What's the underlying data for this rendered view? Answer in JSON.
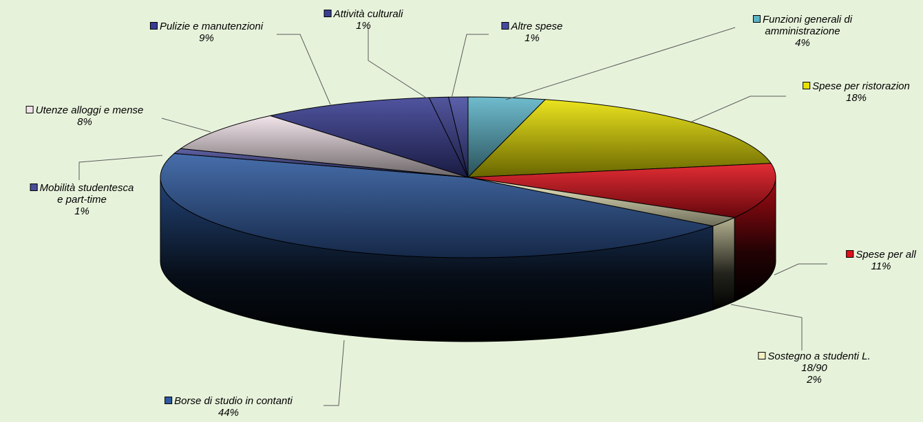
{
  "chart_data": {
    "type": "pie",
    "title": "",
    "three_d": true,
    "slices": [
      {
        "label": "Funzioni generali di amministrazione",
        "label_lines": [
          "Funzioni generali di",
          "amministrazione"
        ],
        "value": 4,
        "display": "4%",
        "color": "#5bb3c7"
      },
      {
        "label": "Spese per ristorazione",
        "label_lines": [
          "Spese per ristorazion"
        ],
        "value": 18,
        "display": "18%",
        "color": "#e8e000"
      },
      {
        "label": "Spese per alloggi",
        "label_lines": [
          "Spese per all"
        ],
        "value": 11,
        "display": "11%",
        "color": "#e0101a"
      },
      {
        "label": "Sostegno a studenti L. 18/90",
        "label_lines": [
          "Sostegno a studenti L.",
          "18/90"
        ],
        "value": 2,
        "display": "2%",
        "color": "#f3efc3"
      },
      {
        "label": "Borse di studio in contanti",
        "label_lines": [
          "Borse di studio in contanti"
        ],
        "value": 44,
        "display": "44%",
        "color": "#2e5aa0"
      },
      {
        "label": "Mobilità studentesca e part-time",
        "label_lines": [
          "Mobilità studentesca",
          "e part-time"
        ],
        "value": 1,
        "display": "1%",
        "color": "#4a4e99"
      },
      {
        "label": "Utenze alloggi e mense",
        "label_lines": [
          "Utenze alloggi e mense"
        ],
        "value": 8,
        "display": "8%",
        "color": "#f0e2e8"
      },
      {
        "label": "Pulizie e manutenzioni",
        "label_lines": [
          "Pulizie e manutenzioni"
        ],
        "value": 9,
        "display": "9%",
        "color": "#383d92"
      },
      {
        "label": "Attività culturali",
        "label_lines": [
          "Attività culturali"
        ],
        "value": 1,
        "display": "1%",
        "color": "#3a3f90"
      },
      {
        "label": "Altre spese",
        "label_lines": [
          "Altre spese"
        ],
        "value": 1,
        "display": "1%",
        "color": "#454aa0"
      }
    ]
  }
}
